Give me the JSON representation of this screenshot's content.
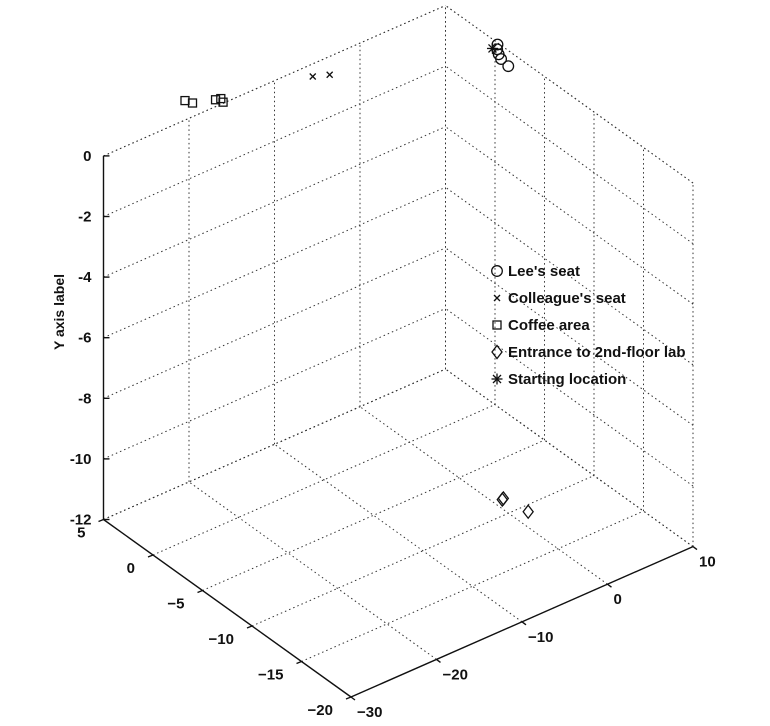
{
  "chart_data": {
    "type": "scatter",
    "dimension": "3d",
    "ylabel": "Y axis label",
    "xlabel": "",
    "zlabel": "",
    "xlim": [
      -30,
      10
    ],
    "ylim": [
      -12,
      0
    ],
    "zlim": [
      -20,
      5
    ],
    "x_ticks": [
      {
        "value": -30,
        "label": "−30"
      },
      {
        "value": -20,
        "label": "−20"
      },
      {
        "value": -10,
        "label": "−10"
      },
      {
        "value": 0,
        "label": "0"
      },
      {
        "value": 10,
        "label": "10"
      }
    ],
    "y_ticks": [
      {
        "value": 0,
        "label": "0"
      },
      {
        "value": -2,
        "label": "-2"
      },
      {
        "value": -4,
        "label": "-4"
      },
      {
        "value": -6,
        "label": "-6"
      },
      {
        "value": -8,
        "label": "-8"
      },
      {
        "value": -10,
        "label": "-10"
      },
      {
        "value": -12,
        "label": "-12"
      }
    ],
    "z_ticks": [
      {
        "value": 5,
        "label": "5"
      },
      {
        "value": 0,
        "label": "0"
      },
      {
        "value": -5,
        "label": "−5"
      },
      {
        "value": -10,
        "label": "−10"
      },
      {
        "value": -15,
        "label": "−15"
      },
      {
        "value": -20,
        "label": "−20"
      }
    ],
    "grid": true,
    "legend_position": "right",
    "series": [
      {
        "name": "Lee's seat",
        "marker": "circle",
        "points": [
          {
            "x": 7.5,
            "y": 0.3,
            "z": -3.5
          },
          {
            "x": 7.7,
            "y": 0.3,
            "z": -2.6
          },
          {
            "x": 8.0,
            "y": 0.3,
            "z": -2.1
          },
          {
            "x": 8.4,
            "y": 0.3,
            "z": -1.6
          },
          {
            "x": 8.9,
            "y": 0.3,
            "z": -1.2
          }
        ]
      },
      {
        "name": "Colleague's seat",
        "marker": "x",
        "points": [
          {
            "x": -6.8,
            "y": 0.0,
            "z": 3.9
          },
          {
            "x": -5.4,
            "y": 0.0,
            "z": 3.4
          }
        ]
      },
      {
        "name": "Coffee area",
        "marker": "square",
        "points": [
          {
            "x": -18.5,
            "y": 0.0,
            "z": 6.7
          },
          {
            "x": -18.2,
            "y": 0.0,
            "z": 6.2
          },
          {
            "x": -16.2,
            "y": 0.0,
            "z": 5.6
          },
          {
            "x": -15.7,
            "y": 0.0,
            "z": 5.5
          },
          {
            "x": -15.9,
            "y": 0.0,
            "z": 5.1
          }
        ]
      },
      {
        "name": "Entrance to 2nd-floor lab",
        "marker": "diamond",
        "points": [
          {
            "x": -5.0,
            "y": -10.0,
            "z": -13.8
          },
          {
            "x": -4.9,
            "y": -10.1,
            "z": -13.6
          },
          {
            "x": -2.1,
            "y": -10.8,
            "z": -13.8
          }
        ]
      },
      {
        "name": "Starting location",
        "marker": "asterisk",
        "points": [
          {
            "x": 6.0,
            "y": 1.0,
            "z": -3.2
          }
        ]
      }
    ]
  },
  "colors": {
    "ink": "#111111",
    "background": "#ffffff"
  }
}
